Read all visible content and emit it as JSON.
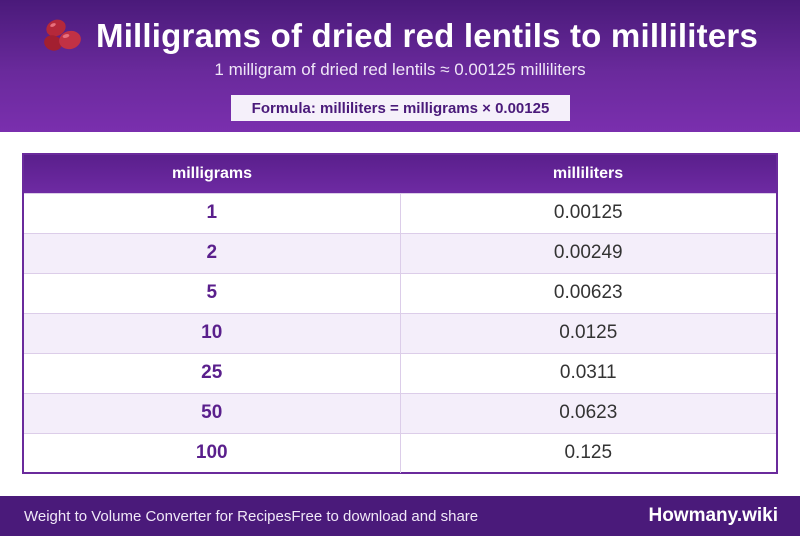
{
  "header": {
    "title": "Milligrams of dried red lentils to milliliters",
    "title_icon": "bean-icon",
    "subtitle": "1 milligram of dried red lentils ≈ 0.00125 milliliters",
    "formula": "Formula: milliliters = milligrams × 0.00125"
  },
  "table": {
    "columns": [
      "milligrams",
      "milliliters"
    ],
    "rows": [
      {
        "mg": "1",
        "ml": "0.00125"
      },
      {
        "mg": "2",
        "ml": "0.00249"
      },
      {
        "mg": "5",
        "ml": "0.00623"
      },
      {
        "mg": "10",
        "ml": "0.0125"
      },
      {
        "mg": "25",
        "ml": "0.0311"
      },
      {
        "mg": "50",
        "ml": "0.0623"
      },
      {
        "mg": "100",
        "ml": "0.125"
      }
    ]
  },
  "footer": {
    "left_text": "Weight to Volume Converter for Recipes",
    "middle_text": "Free to download and share",
    "brand": "Howmany.wiki"
  },
  "colors": {
    "header_dark": "#4a1a7a",
    "header_light": "#7a2fae",
    "accent_text": "#5a1f8c",
    "row_alt": "#f4eefa"
  }
}
